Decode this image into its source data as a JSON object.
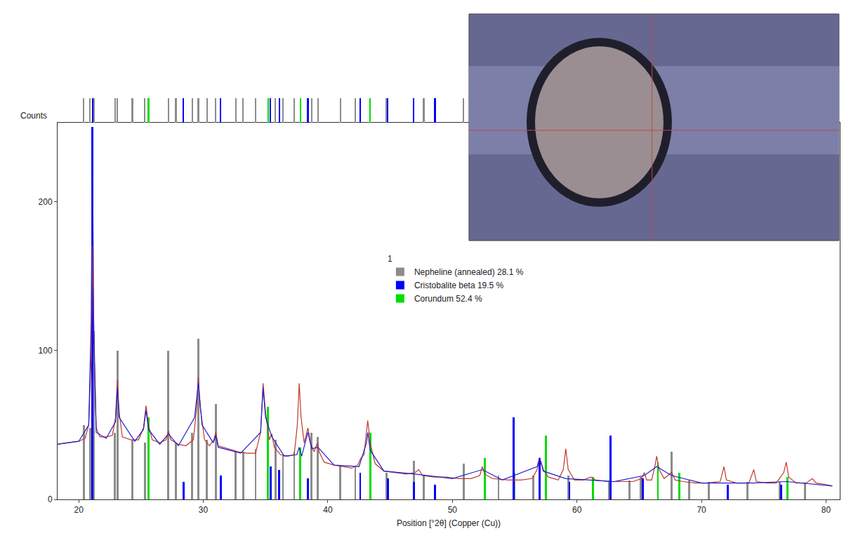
{
  "chart_data": {
    "type": "line",
    "xlabel": "Position [°2θ] (Copper (Cu))",
    "ylabel": "Counts",
    "legend_title": "1",
    "xlim": [
      18.3,
      81.1
    ],
    "xticks": [
      20,
      30,
      40,
      50,
      60,
      70,
      80
    ],
    "ylim": [
      0,
      253
    ],
    "yticks": [
      0,
      100,
      200
    ],
    "grid": false,
    "legend": "upper center",
    "series": [
      {
        "type": "bar",
        "name": "Nepheline (annealed) 28.1 %",
        "color": "#8c8c8c",
        "x": [
          20.4,
          20.9,
          21.2,
          22.9,
          23.1,
          24.3,
          25.3,
          27.2,
          27.8,
          29.1,
          29.6,
          30.3,
          31.0,
          32.6,
          33.2,
          34.2,
          35.8,
          36.4,
          37.3,
          38.7,
          39.2,
          41.0,
          42.2,
          44.7,
          46.9,
          47.7,
          50.9,
          53.7,
          55.0,
          56.5,
          59.3,
          62.6,
          64.2,
          65.1,
          67.6,
          69.0,
          70.6,
          73.7,
          76.3,
          78.3
        ],
        "values": [
          50,
          48,
          113,
          45,
          100,
          40,
          38,
          100,
          38,
          45,
          108,
          40,
          64,
          32,
          32,
          34,
          40,
          30,
          32,
          45,
          42,
          22,
          22,
          18,
          26,
          16,
          24,
          16,
          18,
          16,
          16,
          13,
          13,
          15,
          32,
          13,
          12,
          12,
          12,
          11
        ]
      },
      {
        "type": "bar",
        "name": "Cristobalite beta 19.5 %",
        "color": "#0000ff",
        "x": [
          21.1,
          28.4,
          31.4,
          35.4,
          36.1,
          38.4,
          42.6,
          44.8,
          46.9,
          48.6,
          54.9,
          57.0,
          59.4,
          62.7,
          65.3,
          68.2,
          72.1,
          76.4
        ],
        "values": [
          250,
          12,
          16,
          22,
          20,
          14,
          18,
          14,
          12,
          10,
          55,
          28,
          12,
          43,
          14,
          10,
          10,
          10
        ]
      },
      {
        "type": "bar",
        "name": "Corundum 52.4 %",
        "color": "#00dd00",
        "x": [
          25.6,
          35.2,
          37.8,
          43.4,
          52.6,
          57.5,
          61.3,
          66.5,
          68.2,
          76.9
        ],
        "values": [
          55,
          62,
          35,
          45,
          28,
          43,
          15,
          25,
          18,
          15
        ]
      },
      {
        "type": "line",
        "color": "#c0392b",
        "x": [
          18.3,
          19,
          20,
          20.5,
          20.8,
          21.0,
          21.1,
          21.2,
          21.4,
          21.7,
          22.2,
          22.7,
          22.95,
          23.1,
          23.25,
          23.5,
          24.2,
          24.8,
          25.2,
          25.4,
          25.6,
          25.9,
          26.5,
          27.0,
          27.2,
          27.4,
          28,
          28.6,
          29.2,
          29.45,
          29.6,
          29.75,
          30.1,
          30.5,
          30.85,
          31.0,
          31.2,
          32,
          32.8,
          33.5,
          34.2,
          34.6,
          34.8,
          35.0,
          35.3,
          35.5,
          35.7,
          36.2,
          36.8,
          37.3,
          37.55,
          37.7,
          37.85,
          38.1,
          38.4,
          38.6,
          38.9,
          39.15,
          39.3,
          39.7,
          40.5,
          41.3,
          41.9,
          42.4,
          42.6,
          42.9,
          43.1,
          43.2,
          43.4,
          43.8,
          44.5,
          45.5,
          46.3,
          47.0,
          47.3,
          47.6,
          48.5,
          49.5,
          50.5,
          51.5,
          52.2,
          52.4,
          52.6,
          53.2,
          54.5,
          55.5,
          56.4,
          56.8,
          57.0,
          57.3,
          57.7,
          58.5,
          58.9,
          59.1,
          59.3,
          59.8,
          60.5,
          61.1,
          61.5,
          62.5,
          63.5,
          64.5,
          65.2,
          65.4,
          65.6,
          66.0,
          66.3,
          66.4,
          66.6,
          67.0,
          67.6,
          67.9,
          68.5,
          69.5,
          70.5,
          71.5,
          71.8,
          72.0,
          72.8,
          73.8,
          74.2,
          74.4,
          75.2,
          76.0,
          76.6,
          76.8,
          77.0,
          77.6,
          78.4,
          78.9,
          79.2,
          80.0,
          80.5
        ],
        "values": [
          37,
          38,
          39,
          41,
          50,
          95,
          170,
          110,
          48,
          42,
          42,
          43,
          55,
          80,
          58,
          42,
          40,
          40,
          48,
          63,
          50,
          40,
          38,
          40,
          46,
          40,
          37,
          36,
          40,
          60,
          82,
          62,
          40,
          36,
          40,
          45,
          36,
          34,
          32,
          31,
          31,
          45,
          78,
          58,
          40,
          44,
          35,
          30,
          29,
          30,
          50,
          78,
          55,
          38,
          48,
          38,
          32,
          38,
          32,
          25,
          23,
          22,
          21,
          23,
          27,
          30,
          45,
          53,
          38,
          24,
          19,
          18,
          17,
          18,
          20,
          16,
          15,
          15,
          14,
          14,
          16,
          22,
          17,
          14,
          13,
          13,
          14,
          20,
          28,
          20,
          15,
          13,
          20,
          34,
          20,
          13,
          13,
          15,
          13,
          12,
          12,
          12,
          14,
          18,
          13,
          13,
          24,
          29,
          20,
          14,
          18,
          13,
          12,
          11,
          11,
          12,
          22,
          13,
          11,
          11,
          20,
          12,
          11,
          11,
          18,
          25,
          15,
          11,
          11,
          14,
          11,
          10,
          9
        ]
      },
      {
        "type": "line",
        "color": "#2020d0",
        "x": [
          18.3,
          20,
          20.8,
          21.0,
          21.1,
          21.2,
          21.4,
          22.2,
          22.95,
          23.1,
          23.25,
          24.5,
          25.2,
          25.4,
          25.6,
          26.5,
          27.2,
          28,
          29.3,
          29.6,
          29.9,
          30.8,
          31.0,
          31.2,
          33,
          34.6,
          34.8,
          35.0,
          35.5,
          36.5,
          37.5,
          37.7,
          37.9,
          38.4,
          38.7,
          39.2,
          40.5,
          42.5,
          43.1,
          43.2,
          43.4,
          44.5,
          47,
          50,
          52.4,
          54,
          56.8,
          57.0,
          57.3,
          59.1,
          61,
          63,
          65.4,
          66.4,
          67.6,
          70,
          71.8,
          74.2,
          76.8,
          80.5
        ],
        "values": [
          37,
          39,
          50,
          120,
          245,
          120,
          45,
          41,
          52,
          75,
          55,
          39,
          47,
          60,
          47,
          37,
          44,
          36,
          55,
          78,
          50,
          38,
          43,
          35,
          31,
          45,
          75,
          55,
          42,
          29,
          30,
          35,
          29,
          45,
          34,
          35,
          23,
          22,
          38,
          45,
          33,
          19,
          17,
          14,
          20,
          13,
          22,
          28,
          19,
          14,
          13,
          12,
          16,
          22,
          16,
          11,
          11,
          11,
          12,
          9
        ]
      }
    ]
  }
}
